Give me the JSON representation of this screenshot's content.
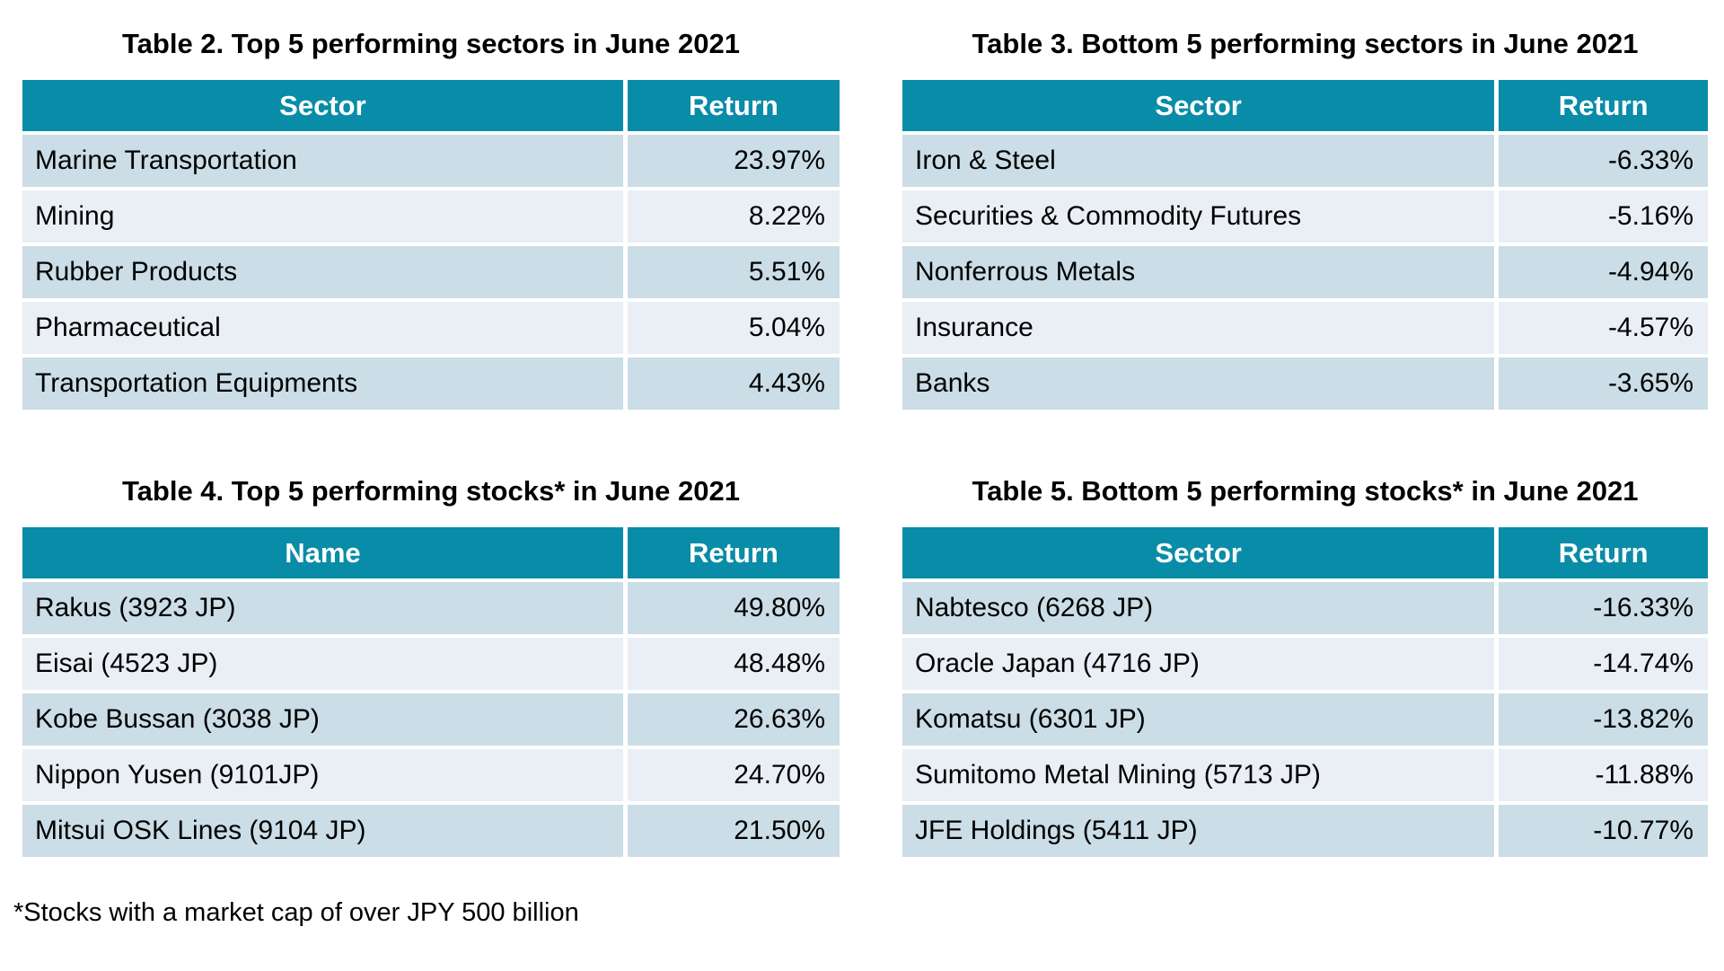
{
  "colors": {
    "header_bg": "#098ca8",
    "row_odd_bg": "#cbdde6",
    "row_even_bg": "#e9eff5",
    "header_text": "#ffffff",
    "body_text": "#000000",
    "page_bg": "#ffffff"
  },
  "tables": [
    {
      "title": "Table 2. Top 5 performing sectors in June 2021",
      "columns": [
        "Sector",
        "Return"
      ],
      "rows": [
        [
          "Marine Transportation",
          "23.97%"
        ],
        [
          "Mining",
          "8.22%"
        ],
        [
          "Rubber Products",
          "5.51%"
        ],
        [
          "Pharmaceutical",
          "5.04%"
        ],
        [
          "Transportation Equipments",
          "4.43%"
        ]
      ]
    },
    {
      "title": "Table 3. Bottom 5 performing sectors in June 2021",
      "columns": [
        "Sector",
        "Return"
      ],
      "rows": [
        [
          "Iron & Steel",
          "-6.33%"
        ],
        [
          "Securities & Commodity Futures",
          "-5.16%"
        ],
        [
          "Nonferrous Metals",
          "-4.94%"
        ],
        [
          "Insurance",
          "-4.57%"
        ],
        [
          "Banks",
          "-3.65%"
        ]
      ]
    },
    {
      "title": "Table 4. Top 5 performing stocks* in June 2021",
      "columns": [
        "Name",
        "Return"
      ],
      "rows": [
        [
          "Rakus (3923 JP)",
          "49.80%"
        ],
        [
          "Eisai (4523 JP)",
          "48.48%"
        ],
        [
          "Kobe Bussan (3038 JP)",
          "26.63%"
        ],
        [
          "Nippon Yusen (9101JP)",
          "24.70%"
        ],
        [
          "Mitsui OSK Lines (9104 JP)",
          "21.50%"
        ]
      ]
    },
    {
      "title": "Table 5. Bottom 5 performing stocks* in June 2021",
      "columns": [
        "Sector",
        "Return"
      ],
      "rows": [
        [
          "Nabtesco (6268 JP)",
          "-16.33%"
        ],
        [
          "Oracle Japan (4716 JP)",
          "-14.74%"
        ],
        [
          "Komatsu (6301 JP)",
          "-13.82%"
        ],
        [
          "Sumitomo Metal Mining (5713 JP)",
          "-11.88%"
        ],
        [
          "JFE Holdings (5411 JP)",
          "-10.77%"
        ]
      ]
    }
  ],
  "footnote": "*Stocks with a market cap of over JPY 500 billion"
}
